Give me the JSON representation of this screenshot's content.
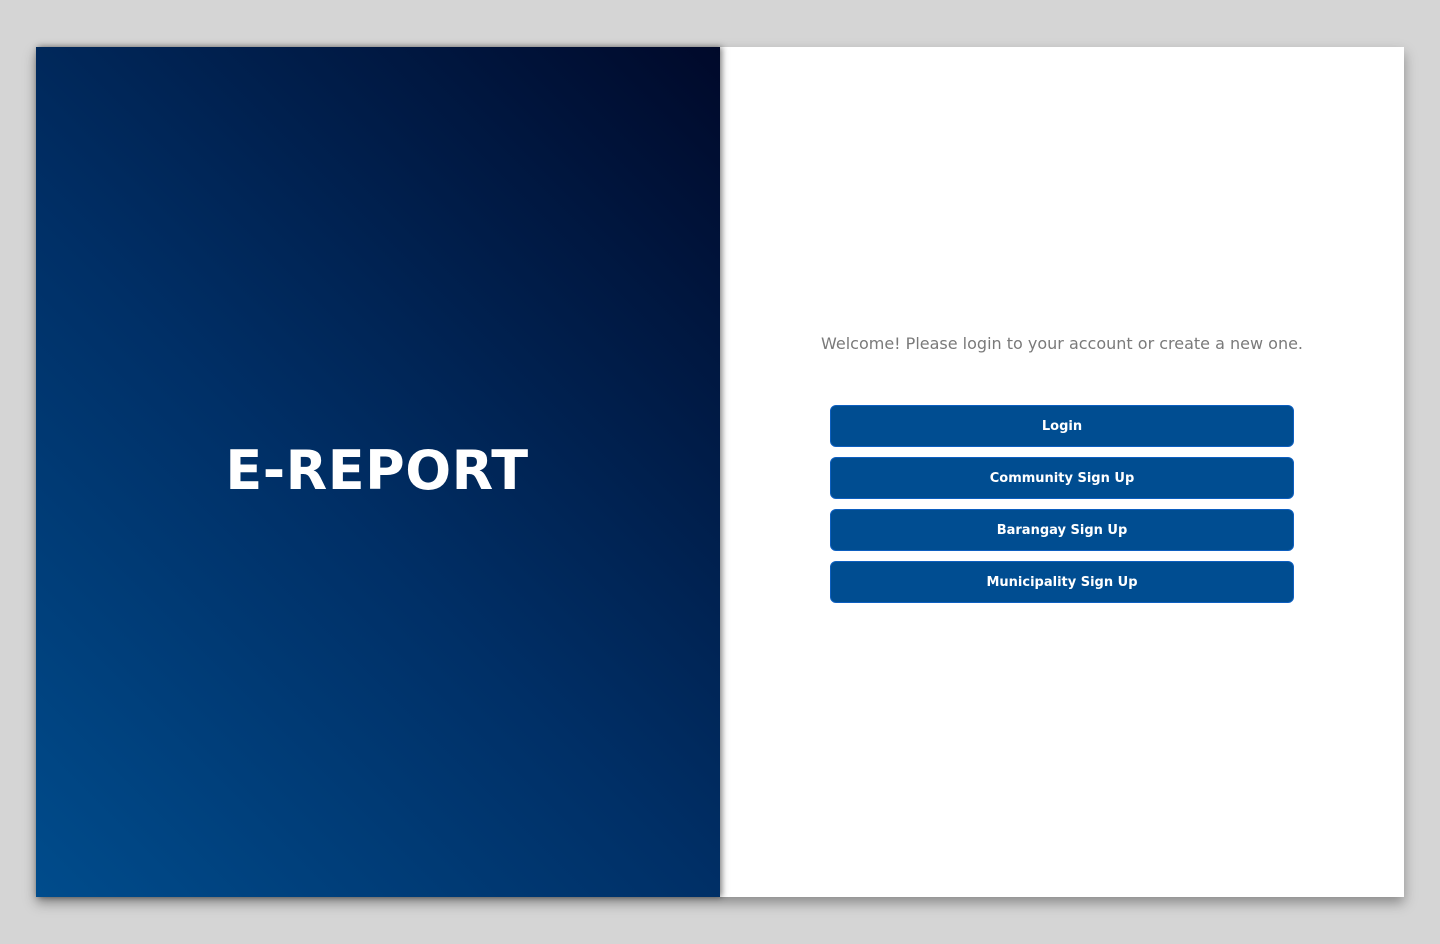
{
  "brand": {
    "title": "E-REPORT"
  },
  "auth": {
    "welcome": "Welcome! Please login to your account or create a new one.",
    "buttons": {
      "login": "Login",
      "community_signup": "Community Sign Up",
      "barangay_signup": "Barangay Sign Up",
      "municipality_signup": "Municipality Sign Up"
    }
  },
  "colors": {
    "brand_dark": "#00092a",
    "brand_mid": "#002f66",
    "brand_light": "#004c8c",
    "button_bg": "#004d91",
    "button_border": "#0d5fc0",
    "welcome_text": "#7a7a7a"
  }
}
